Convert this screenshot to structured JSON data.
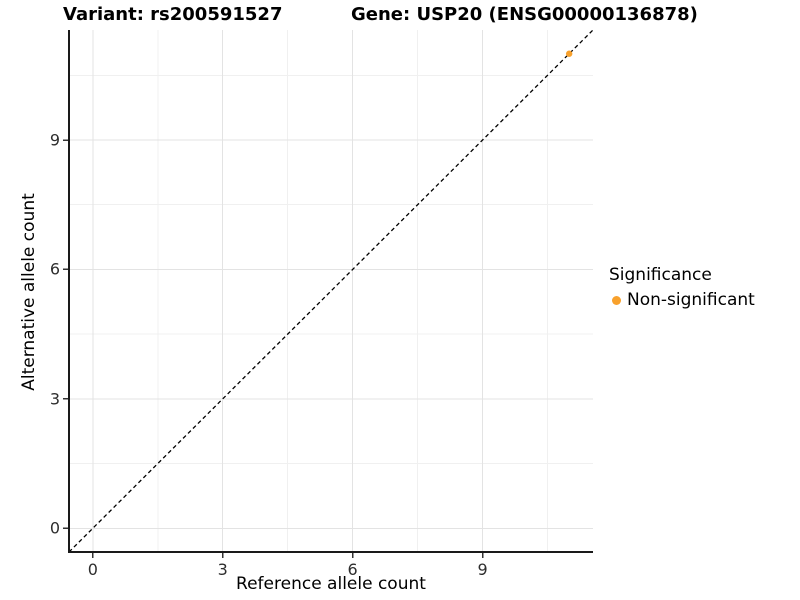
{
  "header": {
    "variant_title": "Variant: rs200591527",
    "gene_title": "Gene: USP20 (ENSG00000136878)"
  },
  "chart_data": {
    "type": "scatter",
    "title": "Variant: rs200591527    Gene: USP20 (ENSG00000136878)",
    "xlabel": "Reference allele count",
    "ylabel": "Alternative allele count",
    "xlim": [
      -0.55,
      11.55
    ],
    "ylim": [
      -0.55,
      11.55
    ],
    "xticks": [
      0,
      3,
      6,
      9
    ],
    "yticks": [
      0,
      3,
      6,
      9
    ],
    "minor_ticks": [
      1.5,
      4.5,
      7.5,
      10.5
    ],
    "grid": "major and minor, light gray on white",
    "reference_line": {
      "kind": "identity",
      "equation": "y = x",
      "style": "dashed",
      "color": "#000000"
    },
    "points": [
      {
        "x": 11,
        "y": 11,
        "series": "Non-significant"
      }
    ],
    "legend": {
      "title": "Significance",
      "position": "right",
      "items": [
        {
          "label": "Non-significant",
          "color": "#F8A12C"
        }
      ]
    },
    "colors": {
      "point": "#F8A12C",
      "grid_major": "#e3e3e3",
      "grid_minor": "#f0f0f0",
      "axis_line": "#1a1a1a",
      "tick_mark": "#333333"
    }
  }
}
